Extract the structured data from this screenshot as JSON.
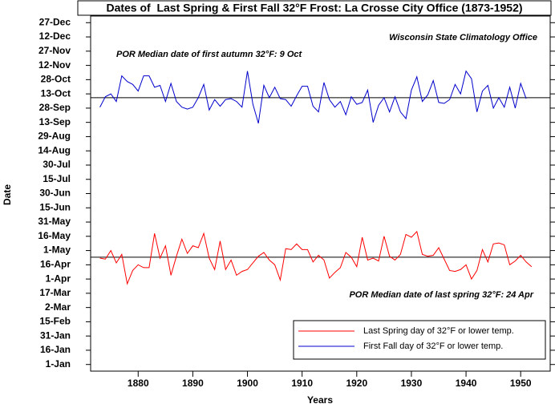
{
  "chart_data": {
    "type": "line",
    "title": "Dates of  Last Spring & First Fall 32°F Frost: La Crosse City Office (1873-1952)",
    "x_label": "Years",
    "y_label": "Date",
    "annotations": [
      "Wisconsin State Climatology Office",
      "POR Median date of first autumn 32°F: 9 Oct",
      "POR Median date of last spring 32°F: 24 Apr"
    ],
    "median_lines": [
      {
        "value": 282,
        "color": "#000000"
      },
      {
        "value": 114,
        "color": "#000000"
      }
    ],
    "xlim": [
      1871.3,
      1955.4
    ],
    "xticks": [
      1880,
      1890,
      1900,
      1910,
      1920,
      1930,
      1940,
      1950
    ],
    "ylim": [
      -6,
      368
    ],
    "yticks": [
      {
        "value": 1,
        "label": "1-Jan"
      },
      {
        "value": 16,
        "label": "16-Jan"
      },
      {
        "value": 31,
        "label": "31-Jan"
      },
      {
        "value": 46,
        "label": "15-Feb"
      },
      {
        "value": 61,
        "label": "2-Mar"
      },
      {
        "value": 76,
        "label": "17-Mar"
      },
      {
        "value": 91,
        "label": "1-Apr"
      },
      {
        "value": 106,
        "label": "16-Apr"
      },
      {
        "value": 121,
        "label": "1-May"
      },
      {
        "value": 136,
        "label": "16-May"
      },
      {
        "value": 151,
        "label": "31-May"
      },
      {
        "value": 166,
        "label": "15-Jun"
      },
      {
        "value": 181,
        "label": "30-Jun"
      },
      {
        "value": 196,
        "label": "15-Jul"
      },
      {
        "value": 211,
        "label": "30-Jul"
      },
      {
        "value": 226,
        "label": "14-Aug"
      },
      {
        "value": 241,
        "label": "29-Aug"
      },
      {
        "value": 256,
        "label": "13-Sep"
      },
      {
        "value": 271,
        "label": "28-Sep"
      },
      {
        "value": 286,
        "label": "13-Oct"
      },
      {
        "value": 301,
        "label": "28-Oct"
      },
      {
        "value": 316,
        "label": "12-Nov"
      },
      {
        "value": 331,
        "label": "27-Nov"
      },
      {
        "value": 346,
        "label": "12-Dec"
      },
      {
        "value": 361,
        "label": "27-Dec"
      }
    ],
    "legend": "lower right",
    "series": [
      {
        "name": "Last Spring day of 32°F or lower temp.",
        "color": "#ff0000",
        "x_start": 1873,
        "values": [
          113,
          112,
          121,
          108,
          117,
          86,
          100,
          106,
          103,
          103,
          139,
          113,
          126,
          95,
          115,
          133,
          118,
          126,
          124,
          139,
          113,
          101,
          131,
          101,
          111,
          95,
          99,
          101,
          108,
          115,
          119,
          111,
          106,
          90,
          123,
          122,
          128,
          122,
          122,
          109,
          116,
          111,
          92,
          98,
          103,
          119,
          114,
          104,
          135,
          111,
          113,
          110,
          136,
          115,
          111,
          117,
          138,
          135,
          141,
          117,
          115,
          116,
          124,
          112,
          100,
          99,
          101,
          106,
          91,
          100,
          122,
          109,
          128,
          129,
          127,
          106,
          110,
          116,
          109,
          104
        ]
      },
      {
        "name": "First Fall day of 32°F or lower temp.",
        "color": "#0000cc",
        "x_start": 1873,
        "values": [
          272,
          283,
          286,
          278,
          305,
          299,
          296,
          289,
          305,
          305,
          293,
          295,
          278,
          297,
          278,
          272,
          270,
          272,
          282,
          296,
          269,
          280,
          273,
          280,
          281,
          278,
          272,
          310,
          275,
          255,
          295,
          282,
          293,
          281,
          280,
          273,
          284,
          294,
          294,
          273,
          267,
          298,
          280,
          272,
          278,
          264,
          283,
          275,
          277,
          290,
          256,
          274,
          282,
          267,
          283,
          267,
          260,
          290,
          304,
          278,
          285,
          300,
          277,
          276,
          280,
          296,
          286,
          310,
          302,
          267,
          289,
          295,
          271,
          282,
          272,
          293,
          271,
          297,
          281
        ]
      }
    ]
  }
}
